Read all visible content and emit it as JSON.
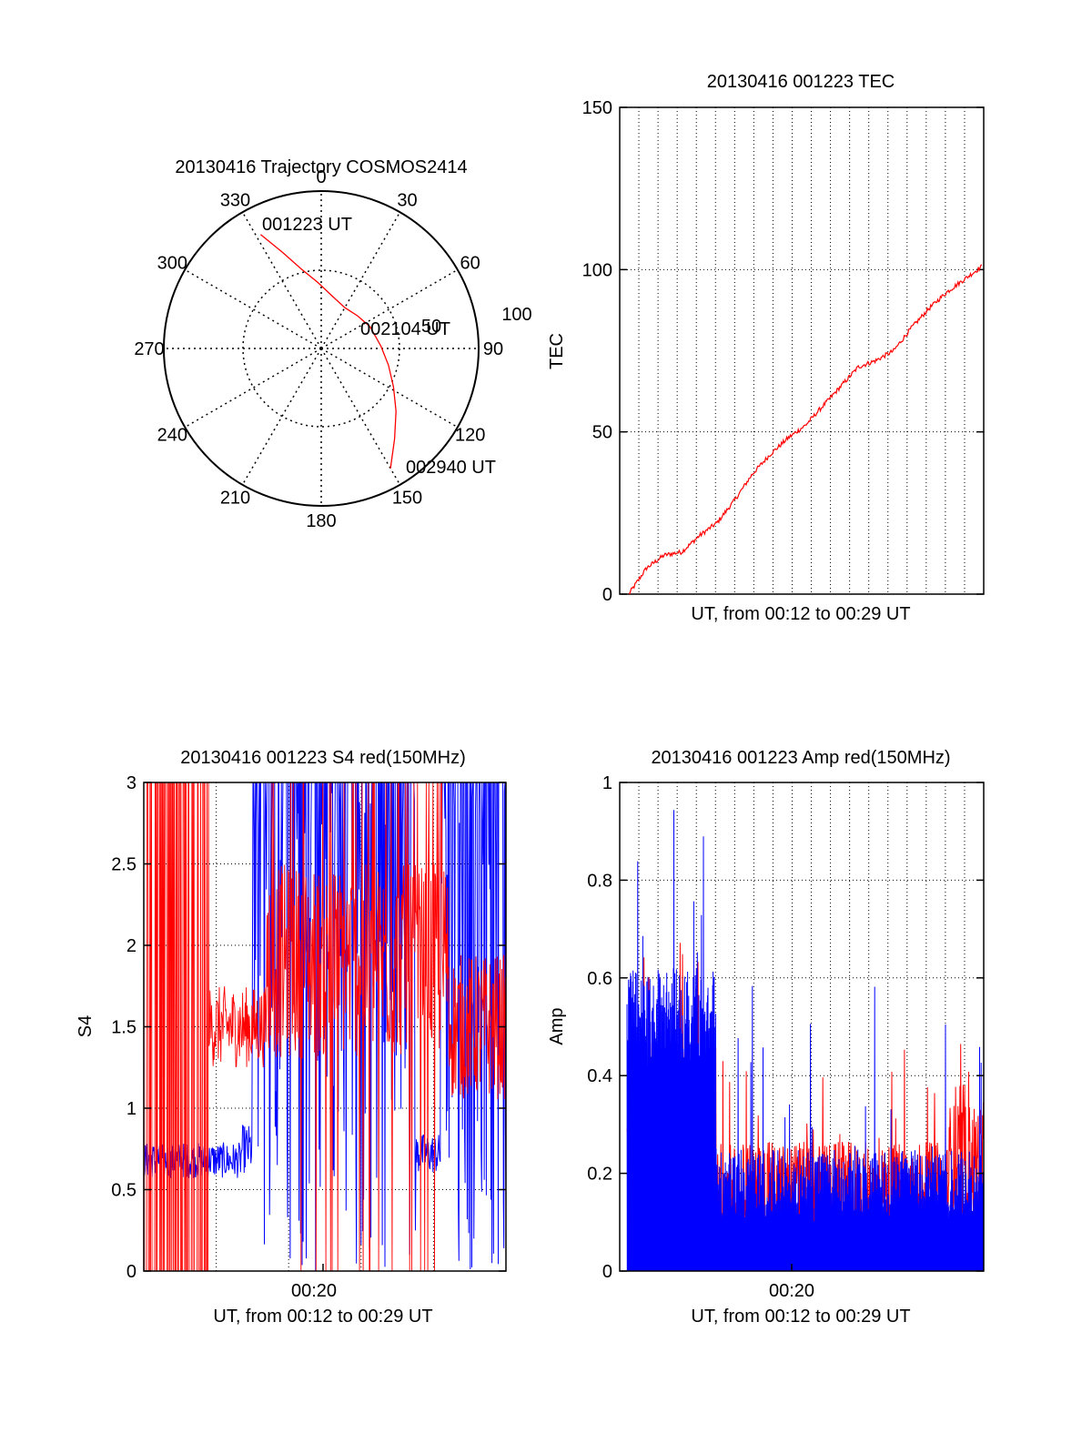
{
  "colors": {
    "red": "#ff0000",
    "blue": "#0000ff",
    "axis": "#000000",
    "background": "#ffffff"
  },
  "chart_data": [
    {
      "type": "polar",
      "title": "20130416 Trajectory COSMOS2414",
      "angle_labels": [
        "0",
        "30",
        "60",
        "90",
        "120",
        "150",
        "180",
        "210",
        "240",
        "270",
        "300",
        "330"
      ],
      "radius_ring_label": "50",
      "radius_outer_label": "100",
      "series": [
        {
          "color": "red",
          "points": [
            {
              "az": 332,
              "r": 82
            },
            {
              "az": 338,
              "r": 66
            },
            {
              "az": 346,
              "r": 52
            },
            {
              "az": 357,
              "r": 42
            },
            {
              "az": 12,
              "r": 34
            },
            {
              "az": 30,
              "r": 30
            },
            {
              "az": 48,
              "r": 31
            },
            {
              "az": 66,
              "r": 34
            },
            {
              "az": 88,
              "r": 38
            },
            {
              "az": 104,
              "r": 44
            },
            {
              "az": 118,
              "r": 52
            },
            {
              "az": 130,
              "r": 62
            },
            {
              "az": 141,
              "r": 74
            },
            {
              "az": 150,
              "r": 88
            }
          ]
        }
      ],
      "annotations": [
        "001223 UT",
        "002104 UT",
        "002940 UT"
      ]
    },
    {
      "type": "line",
      "title": "20130416 001223 TEC",
      "ylabel": "TEC",
      "xlabel": "UT, from 00:12 to 00:29 UT",
      "ylim": [
        0,
        150
      ],
      "yticks": [
        "0",
        "50",
        "100",
        "150"
      ],
      "grid": true,
      "series": [
        {
          "color": "red",
          "x": [
            0,
            0.05,
            0.1,
            0.15,
            0.2,
            0.25,
            0.3,
            0.35,
            0.4,
            0.45,
            0.5,
            0.55,
            0.6,
            0.65,
            0.7,
            0.75,
            0.8,
            0.85,
            0.9,
            0.95,
            1.0
          ],
          "values": [
            0,
            8,
            12,
            13,
            18,
            22,
            29,
            37,
            43,
            48,
            52,
            58,
            64,
            70,
            72,
            75,
            82,
            88,
            93,
            97,
            101
          ]
        }
      ]
    },
    {
      "type": "line",
      "title": "20130416 001223 S4 red(150MHz)",
      "ylabel": "S4",
      "xlabel": "UT, from 00:12 to 00:29 UT",
      "xtick_label": "00:20",
      "ylim": [
        0,
        3
      ],
      "yticks": [
        "0",
        "0.5",
        "1",
        "1.5",
        "2",
        "2.5",
        "3"
      ],
      "grid": true,
      "series": [
        {
          "color": "red",
          "description_values": [
            0,
            3
          ]
        },
        {
          "color": "blue",
          "description_values": [
            0,
            3
          ]
        }
      ]
    },
    {
      "type": "line",
      "title": "20130416 001223 Amp red(150MHz)",
      "ylabel": "Amp",
      "xlabel": "UT, from 00:12 to 00:29 UT",
      "xtick_label": "00:20",
      "ylim": [
        0,
        1
      ],
      "yticks": [
        "0",
        "0.2",
        "0.4",
        "0.6",
        "0.8",
        "1"
      ],
      "grid": true,
      "series": [
        {
          "color": "red",
          "description_values": [
            0,
            1
          ]
        },
        {
          "color": "blue",
          "description_values": [
            0,
            1
          ]
        }
      ]
    }
  ]
}
